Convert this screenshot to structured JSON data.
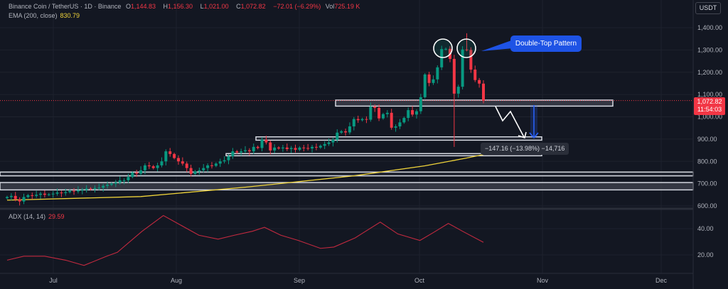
{
  "header": {
    "symbol": "Binance Coin / TetherUS · 1D · Binance",
    "open_label": "O",
    "open": "1,144.83",
    "high_label": "H",
    "high": "1,156.30",
    "low_label": "L",
    "low": "1,021.00",
    "close_label": "C",
    "close": "1,072.82",
    "change": "−72.01 (−6.29%)",
    "vol_label": "Vol",
    "vol": "725.19 K"
  },
  "ema_legend": {
    "label": "EMA (200, close)",
    "value": "830.79"
  },
  "adx_legend": {
    "label": "ADX (14, 14)",
    "value": "29.59"
  },
  "currency_button": "USDT",
  "last_price": {
    "price": "1,072.82",
    "countdown": "11:54:03"
  },
  "annotations": {
    "callout": "Double-Top Pattern",
    "measure": "−147.16 (−13.98%) −14,716"
  },
  "colors": {
    "up": "#089981",
    "down": "#f23645",
    "ema": "#f0d43a",
    "adx": "#c2293f",
    "callout": "#1e53e5",
    "background": "#131722"
  },
  "chart_data": [
    {
      "type": "candlestick",
      "series_name": "BNBUSDT 1D",
      "closes": [
        640,
        645,
        630,
        620,
        640,
        648,
        645,
        650,
        655,
        650,
        652,
        655,
        660,
        658,
        662,
        668,
        665,
        670,
        672,
        678,
        675,
        680,
        682,
        690,
        695,
        700,
        705,
        715,
        715,
        730,
        750,
        745,
        760,
        782,
        778,
        770,
        782,
        800,
        845,
        833,
        815,
        800,
        790,
        770,
        744,
        755,
        760,
        770,
        782,
        780,
        790,
        800,
        805,
        823,
        845,
        840,
        845,
        850,
        845,
        865,
        860,
        897,
        885,
        849,
        862,
        858,
        862,
        855,
        860,
        852,
        862,
        860,
        858,
        865,
        862,
        870,
        878,
        885,
        897,
        929,
        935,
        930,
        957,
        990,
        985,
        990,
        987,
        1046,
        1040,
        993,
        1012,
        1018,
        951,
        957,
        975,
        995,
        1030,
        1010,
        1025,
        1088,
        1190,
        1152,
        1168,
        1222,
        1304,
        1305,
        1260,
        1104,
        1135,
        1302,
        1300,
        1212,
        1165,
        1149,
        1072.82
      ],
      "notable_wicks": {
        "low_107": 865,
        "high_110": 1375
      },
      "ema200": [
        [
          0,
          626
        ],
        [
          32,
          642
        ],
        [
          57,
          684
        ],
        [
          83,
          735
        ],
        [
          100,
          780
        ],
        [
          110,
          815
        ],
        [
          114,
          830.79
        ]
      ],
      "zones": [
        [
          1048,
          1075
        ],
        [
          895,
          910
        ],
        [
          825,
          835
        ],
        [
          735,
          752
        ],
        [
          672,
          705
        ]
      ],
      "yaxis": {
        "ticks": [
          "1,400.00",
          "1,300.00",
          "1,200.00",
          "1,100.00",
          "1,000.00",
          "900.00",
          "800.00",
          "700.00",
          "600.00"
        ],
        "range": [
          600,
          1400
        ]
      }
    },
    {
      "type": "line",
      "series_name": "ADX (14, 14)",
      "points": [
        [
          0,
          16
        ],
        [
          4,
          19
        ],
        [
          9,
          19
        ],
        [
          14,
          16
        ],
        [
          18.4,
          12
        ],
        [
          23.8,
          19
        ],
        [
          26.4,
          22
        ],
        [
          32.3,
          38
        ],
        [
          37.4,
          50
        ],
        [
          40.8,
          44
        ],
        [
          45.9,
          35
        ],
        [
          50.5,
          32
        ],
        [
          54.4,
          35
        ],
        [
          58.7,
          38
        ],
        [
          61.6,
          41
        ],
        [
          65.5,
          35
        ],
        [
          69.7,
          31
        ],
        [
          75,
          25
        ],
        [
          78.2,
          26
        ],
        [
          83.3,
          33
        ],
        [
          89.3,
          45
        ],
        [
          93.5,
          36
        ],
        [
          98.8,
          31
        ],
        [
          102,
          37
        ],
        [
          105.6,
          44
        ],
        [
          109,
          38
        ],
        [
          114,
          29.59
        ]
      ],
      "yaxis": {
        "ticks": [
          "40.00",
          "20.00"
        ]
      }
    }
  ],
  "xaxis": {
    "ticks": [
      "Jul",
      "Aug",
      "Sep",
      "Oct",
      "Nov",
      "Dec"
    ]
  }
}
